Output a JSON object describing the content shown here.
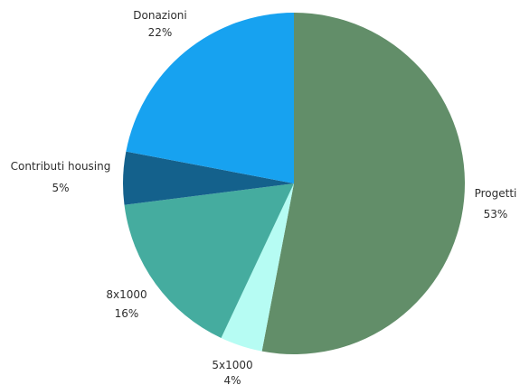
{
  "chart_data": {
    "type": "pie",
    "title": "",
    "start_angle_deg": 0,
    "direction": "clockwise",
    "slices": [
      {
        "label": "Progetti",
        "value": 53,
        "value_label": "53%",
        "color": "#628e69"
      },
      {
        "label": "5x1000",
        "value": 4,
        "value_label": "4%",
        "color": "#b6fcf3"
      },
      {
        "label": "8x1000",
        "value": 16,
        "value_label": "16%",
        "color": "#45ac9f"
      },
      {
        "label": "Contributi housing",
        "value": 5,
        "value_label": "5%",
        "color": "#14618c"
      },
      {
        "label": "Donazioni",
        "value": 22,
        "value_label": "22%",
        "color": "#17a2f0"
      }
    ]
  }
}
